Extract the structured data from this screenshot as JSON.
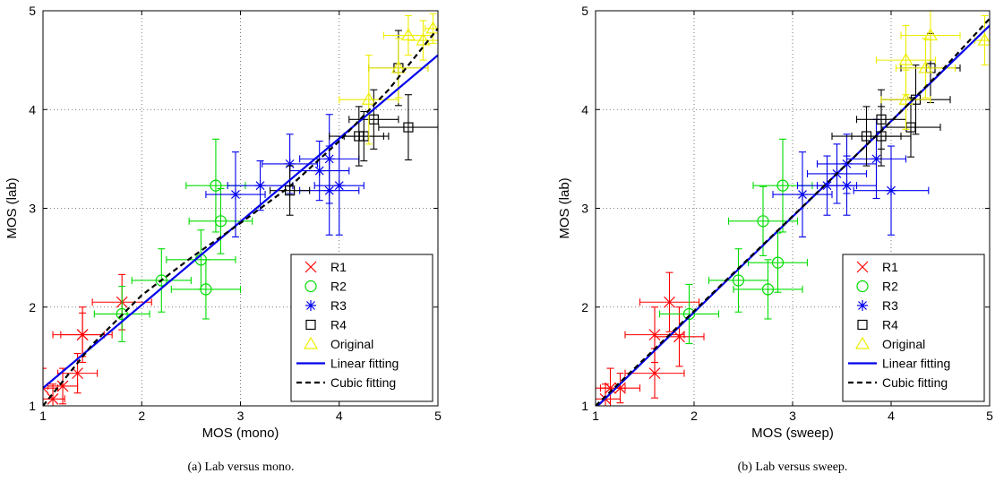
{
  "chart_data": [
    {
      "type": "scatter",
      "caption": "(a)  Lab versus mono.",
      "xlabel": "MOS (mono)",
      "ylabel": "MOS (lab)",
      "xlim": [
        1,
        5
      ],
      "ylim": [
        1,
        5
      ],
      "xticks": [
        1,
        2,
        3,
        4,
        5
      ],
      "yticks": [
        1,
        2,
        3,
        4,
        5
      ],
      "grid": "dotted",
      "legend_position": "bottom-right",
      "series": [
        {
          "name": "R1",
          "marker": "x",
          "color": "#ff0000",
          "points": [
            {
              "x": 1.0,
              "y": 1.18,
              "xerr": 0.15,
              "yerr": 0.2
            },
            {
              "x": 1.1,
              "y": 1.07,
              "xerr": 0.12,
              "yerr": 0.15
            },
            {
              "x": 1.2,
              "y": 1.2,
              "xerr": 0.15,
              "yerr": 0.18
            },
            {
              "x": 1.35,
              "y": 1.33,
              "xerr": 0.2,
              "yerr": 0.2
            },
            {
              "x": 1.4,
              "y": 1.72,
              "xerr": 0.3,
              "yerr": 0.28
            },
            {
              "x": 1.4,
              "y": 1.72,
              "xerr": 0.22,
              "yerr": 0.22
            },
            {
              "x": 1.8,
              "y": 2.05,
              "xerr": 0.3,
              "yerr": 0.28
            }
          ]
        },
        {
          "name": "R2",
          "marker": "o",
          "color": "#00dd00",
          "points": [
            {
              "x": 1.8,
              "y": 1.93,
              "xerr": 0.28,
              "yerr": 0.28
            },
            {
              "x": 2.2,
              "y": 2.27,
              "xerr": 0.3,
              "yerr": 0.32
            },
            {
              "x": 2.6,
              "y": 2.48,
              "xerr": 0.35,
              "yerr": 0.3
            },
            {
              "x": 2.65,
              "y": 2.18,
              "xerr": 0.35,
              "yerr": 0.3
            },
            {
              "x": 2.75,
              "y": 3.23,
              "xerr": 0.3,
              "yerr": 0.47
            },
            {
              "x": 2.8,
              "y": 2.87,
              "xerr": 0.32,
              "yerr": 0.33
            }
          ]
        },
        {
          "name": "R3",
          "marker": "*",
          "color": "#0000ee",
          "points": [
            {
              "x": 2.95,
              "y": 3.14,
              "xerr": 0.3,
              "yerr": 0.43
            },
            {
              "x": 3.2,
              "y": 3.23,
              "xerr": 0.33,
              "yerr": 0.25
            },
            {
              "x": 3.5,
              "y": 3.45,
              "xerr": 0.28,
              "yerr": 0.3
            },
            {
              "x": 3.8,
              "y": 3.38,
              "xerr": 0.3,
              "yerr": 0.3
            },
            {
              "x": 3.9,
              "y": 3.5,
              "xerr": 0.3,
              "yerr": 0.45
            },
            {
              "x": 3.9,
              "y": 3.18,
              "xerr": 0.3,
              "yerr": 0.45
            },
            {
              "x": 4.0,
              "y": 3.23,
              "xerr": 0.25,
              "yerr": 0.5
            }
          ]
        },
        {
          "name": "R4",
          "marker": "s",
          "color": "#000000",
          "points": [
            {
              "x": 3.5,
              "y": 3.18,
              "xerr": 0.2,
              "yerr": 0.25
            },
            {
              "x": 4.2,
              "y": 3.73,
              "xerr": 0.3,
              "yerr": 0.3
            },
            {
              "x": 4.25,
              "y": 3.73,
              "xerr": 0.2,
              "yerr": 0.25
            },
            {
              "x": 4.35,
              "y": 3.9,
              "xerr": 0.25,
              "yerr": 0.3
            },
            {
              "x": 4.6,
              "y": 4.42,
              "xerr": 0.3,
              "yerr": 0.38
            },
            {
              "x": 4.7,
              "y": 3.82,
              "xerr": 0.3,
              "yerr": 0.33
            }
          ]
        },
        {
          "name": "Original",
          "marker": "^",
          "color": "#eeee00",
          "points": [
            {
              "x": 4.3,
              "y": 4.1,
              "xerr": 0.3,
              "yerr": 0.45
            },
            {
              "x": 4.6,
              "y": 4.42,
              "xerr": 0.3,
              "yerr": 0.3
            },
            {
              "x": 4.7,
              "y": 4.75,
              "xerr": 0.25,
              "yerr": 0.2
            },
            {
              "x": 4.85,
              "y": 4.7,
              "xerr": 0.15,
              "yerr": 0.2
            },
            {
              "x": 4.95,
              "y": 4.82,
              "xerr": 0.08,
              "yerr": 0.15
            }
          ]
        }
      ],
      "fits": [
        {
          "name": "Linear fitting",
          "style": "solid",
          "color": "#0000ee",
          "points": [
            [
              1,
              1.18
            ],
            [
              5,
              4.55
            ]
          ]
        },
        {
          "name": "Cubic fitting",
          "style": "dashed",
          "color": "#000000",
          "points": [
            [
              1,
              1.0
            ],
            [
              1.5,
              1.62
            ],
            [
              2,
              2.12
            ],
            [
              2.5,
              2.5
            ],
            [
              3,
              2.85
            ],
            [
              3.5,
              3.22
            ],
            [
              4,
              3.68
            ],
            [
              4.5,
              4.2
            ],
            [
              5,
              4.82
            ]
          ]
        }
      ]
    },
    {
      "type": "scatter",
      "caption": "(b)  Lab versus sweep.",
      "xlabel": "MOS (sweep)",
      "ylabel": "MOS (lab)",
      "xlim": [
        1,
        5
      ],
      "ylim": [
        1,
        5
      ],
      "xticks": [
        1,
        2,
        3,
        4,
        5
      ],
      "yticks": [
        1,
        2,
        3,
        4,
        5
      ],
      "grid": "dotted",
      "legend_position": "bottom-right",
      "series": [
        {
          "name": "R1",
          "marker": "x",
          "color": "#ff0000",
          "points": [
            {
              "x": 1.1,
              "y": 1.07,
              "xerr": 0.15,
              "yerr": 0.15
            },
            {
              "x": 1.15,
              "y": 1.18,
              "xerr": 0.15,
              "yerr": 0.2
            },
            {
              "x": 1.25,
              "y": 1.18,
              "xerr": 0.2,
              "yerr": 0.15
            },
            {
              "x": 1.6,
              "y": 1.72,
              "xerr": 0.3,
              "yerr": 0.28
            },
            {
              "x": 1.6,
              "y": 1.33,
              "xerr": 0.3,
              "yerr": 0.25
            },
            {
              "x": 1.75,
              "y": 2.05,
              "xerr": 0.3,
              "yerr": 0.3
            },
            {
              "x": 1.85,
              "y": 1.7,
              "xerr": 0.25,
              "yerr": 0.3
            }
          ]
        },
        {
          "name": "R2",
          "marker": "o",
          "color": "#00dd00",
          "points": [
            {
              "x": 1.95,
              "y": 1.93,
              "xerr": 0.3,
              "yerr": 0.3
            },
            {
              "x": 2.45,
              "y": 2.27,
              "xerr": 0.3,
              "yerr": 0.32
            },
            {
              "x": 2.7,
              "y": 2.87,
              "xerr": 0.35,
              "yerr": 0.35
            },
            {
              "x": 2.75,
              "y": 2.18,
              "xerr": 0.35,
              "yerr": 0.3
            },
            {
              "x": 2.85,
              "y": 2.45,
              "xerr": 0.3,
              "yerr": 0.3
            },
            {
              "x": 2.9,
              "y": 3.23,
              "xerr": 0.3,
              "yerr": 0.47
            }
          ]
        },
        {
          "name": "R3",
          "marker": "*",
          "color": "#0000ee",
          "points": [
            {
              "x": 3.1,
              "y": 3.14,
              "xerr": 0.3,
              "yerr": 0.43
            },
            {
              "x": 3.35,
              "y": 3.23,
              "xerr": 0.3,
              "yerr": 0.3
            },
            {
              "x": 3.45,
              "y": 3.35,
              "xerr": 0.3,
              "yerr": 0.3
            },
            {
              "x": 3.55,
              "y": 3.45,
              "xerr": 0.3,
              "yerr": 0.3
            },
            {
              "x": 3.55,
              "y": 3.23,
              "xerr": 0.3,
              "yerr": 0.3
            },
            {
              "x": 3.85,
              "y": 3.5,
              "xerr": 0.3,
              "yerr": 0.4
            },
            {
              "x": 4.0,
              "y": 3.18,
              "xerr": 0.38,
              "yerr": 0.45
            }
          ]
        },
        {
          "name": "R4",
          "marker": "s",
          "color": "#000000",
          "points": [
            {
              "x": 3.75,
              "y": 3.73,
              "xerr": 0.35,
              "yerr": 0.3
            },
            {
              "x": 3.9,
              "y": 3.73,
              "xerr": 0.3,
              "yerr": 0.3
            },
            {
              "x": 3.9,
              "y": 3.9,
              "xerr": 0.25,
              "yerr": 0.3
            },
            {
              "x": 4.2,
              "y": 3.82,
              "xerr": 0.3,
              "yerr": 0.3
            },
            {
              "x": 4.25,
              "y": 4.1,
              "xerr": 0.35,
              "yerr": 0.35
            },
            {
              "x": 4.4,
              "y": 4.42,
              "xerr": 0.3,
              "yerr": 0.35
            }
          ]
        },
        {
          "name": "Original",
          "marker": "^",
          "color": "#eeee00",
          "points": [
            {
              "x": 4.15,
              "y": 4.5,
              "xerr": 0.3,
              "yerr": 0.35
            },
            {
              "x": 4.15,
              "y": 4.1,
              "xerr": 0.25,
              "yerr": 0.3
            },
            {
              "x": 4.35,
              "y": 4.42,
              "xerr": 0.3,
              "yerr": 0.3
            },
            {
              "x": 4.4,
              "y": 4.75,
              "xerr": 0.3,
              "yerr": 0.25
            },
            {
              "x": 4.95,
              "y": 4.7,
              "xerr": 0.1,
              "yerr": 0.25
            }
          ]
        }
      ],
      "fits": [
        {
          "name": "Linear fitting",
          "style": "solid",
          "color": "#0000ee",
          "points": [
            [
              1,
              0.98
            ],
            [
              5,
              4.85
            ]
          ]
        },
        {
          "name": "Cubic fitting",
          "style": "dashed",
          "color": "#000000",
          "points": [
            [
              1,
              1.0
            ],
            [
              1.5,
              1.48
            ],
            [
              2,
              1.96
            ],
            [
              2.5,
              2.44
            ],
            [
              3,
              2.92
            ],
            [
              3.5,
              3.4
            ],
            [
              4,
              3.88
            ],
            [
              4.5,
              4.38
            ],
            [
              5,
              4.92
            ]
          ]
        }
      ]
    }
  ]
}
